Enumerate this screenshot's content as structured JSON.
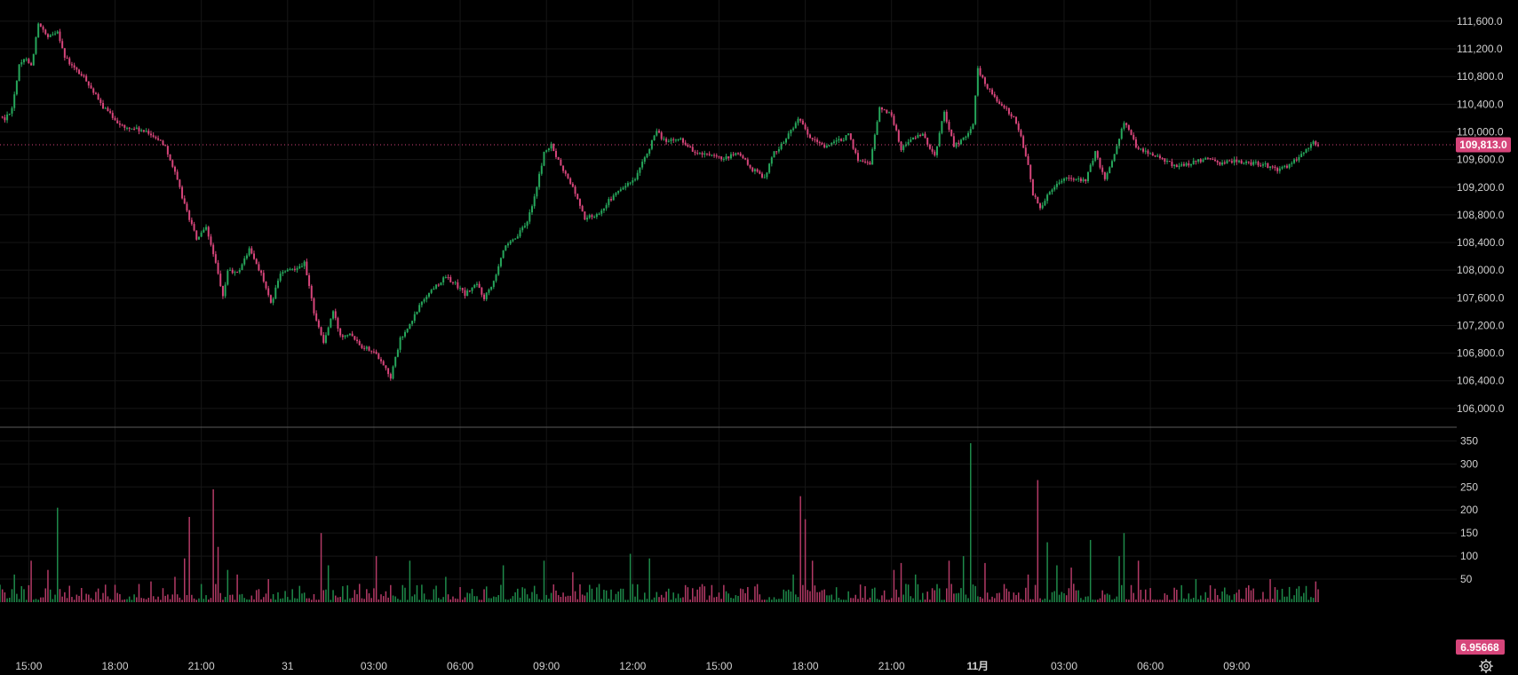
{
  "colors": {
    "background": "#000000",
    "grid": "#161616",
    "up": "#26a65b",
    "down": "#d6457a",
    "up_volume": "#1e8a4a",
    "down_volume": "#b33a66",
    "last_price_line": "#d6457a",
    "last_price_badge": "#d6457a",
    "volume_badge": "#d6457a",
    "pane_separator": "#5a5a5a"
  },
  "icons": {
    "settings": "gear-icon"
  },
  "chart_data": [
    {
      "type": "candlestick",
      "pane": "price",
      "y_ticks": [
        "111,600.0",
        "111,200.0",
        "110,800.0",
        "110,400.0",
        "110,000.0",
        "109,600.0",
        "109,200.0",
        "108,800.0",
        "108,400.0",
        "108,000.0",
        "107,600.0",
        "107,200.0",
        "106,800.0",
        "106,400.0",
        "106,000.0"
      ],
      "ylim": [
        105870,
        111830
      ],
      "last_price": 109813,
      "last_price_label": "109,813.0",
      "grid": true,
      "anchors": [
        [
          "14:00",
          110220
        ],
        [
          "14:10",
          110180
        ],
        [
          "14:25",
          110350
        ],
        [
          "14:40",
          110950
        ],
        [
          "14:55",
          111080
        ],
        [
          "15:05",
          110950
        ],
        [
          "15:20",
          111560
        ],
        [
          "15:40",
          111350
        ],
        [
          "16:00",
          111470
        ],
        [
          "16:15",
          111080
        ],
        [
          "16:30",
          110950
        ],
        [
          "17:00",
          110750
        ],
        [
          "17:30",
          110400
        ],
        [
          "17:50",
          110250
        ],
        [
          "18:05",
          110150
        ],
        [
          "18:20",
          110050
        ],
        [
          "18:40",
          110050
        ],
        [
          "19:00",
          110000
        ],
        [
          "19:20",
          109950
        ],
        [
          "19:45",
          109800
        ],
        [
          "20:05",
          109400
        ],
        [
          "20:25",
          108950
        ],
        [
          "20:50",
          108450
        ],
        [
          "21:10",
          108600
        ],
        [
          "21:25",
          108250
        ],
        [
          "21:45",
          107600
        ],
        [
          "21:55",
          108000
        ],
        [
          "22:15",
          107950
        ],
        [
          "22:40",
          108300
        ],
        [
          "23:05",
          107950
        ],
        [
          "23:25",
          107500
        ],
        [
          "23:45",
          107950
        ],
        [
          "24:05",
          108000
        ],
        [
          "24:35",
          108100
        ],
        [
          "24:55",
          107400
        ],
        [
          "25:15",
          106950
        ],
        [
          "25:35",
          107400
        ],
        [
          "25:50",
          107050
        ],
        [
          "26:10",
          107100
        ],
        [
          "26:35",
          106900
        ],
        [
          "26:55",
          106850
        ],
        [
          "27:15",
          106700
        ],
        [
          "27:35",
          106450
        ],
        [
          "27:55",
          107000
        ],
        [
          "28:15",
          107200
        ],
        [
          "28:40",
          107550
        ],
        [
          "29:05",
          107750
        ],
        [
          "29:30",
          107900
        ],
        [
          "29:50",
          107800
        ],
        [
          "30:10",
          107650
        ],
        [
          "30:35",
          107800
        ],
        [
          "30:50",
          107600
        ],
        [
          "31:10",
          107850
        ],
        [
          "31:30",
          108300
        ],
        [
          "31:55",
          108450
        ],
        [
          "32:20",
          108700
        ],
        [
          "32:40",
          109200
        ],
        [
          "32:55",
          109700
        ],
        [
          "33:10",
          109800
        ],
        [
          "33:30",
          109500
        ],
        [
          "33:55",
          109200
        ],
        [
          "34:20",
          108750
        ],
        [
          "34:45",
          108800
        ],
        [
          "35:10",
          109000
        ],
        [
          "35:40",
          109200
        ],
        [
          "36:05",
          109300
        ],
        [
          "36:30",
          109700
        ],
        [
          "36:50",
          110000
        ],
        [
          "37:10",
          109850
        ],
        [
          "37:40",
          109900
        ],
        [
          "38:10",
          109700
        ],
        [
          "38:40",
          109650
        ],
        [
          "39:10",
          109600
        ],
        [
          "39:40",
          109700
        ],
        [
          "40:10",
          109450
        ],
        [
          "40:35",
          109350
        ],
        [
          "40:55",
          109700
        ],
        [
          "41:20",
          109900
        ],
        [
          "41:45",
          110200
        ],
        [
          "42:10",
          109900
        ],
        [
          "42:40",
          109800
        ],
        [
          "43:05",
          109850
        ],
        [
          "43:30",
          109950
        ],
        [
          "43:50",
          109600
        ],
        [
          "44:15",
          109550
        ],
        [
          "44:35",
          110350
        ],
        [
          "45:00",
          110250
        ],
        [
          "45:20",
          109750
        ],
        [
          "45:40",
          109900
        ],
        [
          "46:05",
          109950
        ],
        [
          "46:30",
          109650
        ],
        [
          "46:50",
          110300
        ],
        [
          "47:10",
          109800
        ],
        [
          "47:30",
          109900
        ],
        [
          "47:50",
          110100
        ],
        [
          "48:00",
          110900
        ],
        [
          "48:15",
          110700
        ],
        [
          "48:35",
          110500
        ],
        [
          "48:55",
          110350
        ],
        [
          "49:15",
          110200
        ],
        [
          "49:30",
          109950
        ],
        [
          "49:45",
          109500
        ],
        [
          "49:55",
          109100
        ],
        [
          "50:10",
          108900
        ],
        [
          "50:30",
          109150
        ],
        [
          "51:00",
          109350
        ],
        [
          "51:25",
          109300
        ],
        [
          "51:45",
          109300
        ],
        [
          "52:05",
          109700
        ],
        [
          "52:25",
          109300
        ],
        [
          "52:45",
          109700
        ],
        [
          "53:05",
          110150
        ],
        [
          "53:30",
          109800
        ],
        [
          "53:55",
          109700
        ],
        [
          "54:25",
          109600
        ],
        [
          "54:55",
          109500
        ],
        [
          "55:25",
          109550
        ],
        [
          "55:55",
          109600
        ],
        [
          "56:25",
          109550
        ],
        [
          "56:55",
          109580
        ],
        [
          "57:25",
          109550
        ],
        [
          "57:55",
          109530
        ],
        [
          "58:20",
          109450
        ],
        [
          "58:45",
          109500
        ],
        [
          "59:05",
          109600
        ],
        [
          "59:25",
          109750
        ],
        [
          "59:40",
          109850
        ],
        [
          "59:50",
          109813
        ]
      ]
    },
    {
      "type": "bar",
      "pane": "volume",
      "y_ticks": [
        "350",
        "300",
        "250",
        "200",
        "150",
        "100",
        "50"
      ],
      "ylim": [
        0,
        372
      ],
      "last_value_label": "6.95668",
      "grid": true,
      "spikes": [
        [
          "14:30",
          60
        ],
        [
          "15:05",
          90
        ],
        [
          "15:40",
          70
        ],
        [
          "16:00",
          205
        ],
        [
          "19:15",
          45
        ],
        [
          "20:05",
          55
        ],
        [
          "20:25",
          95
        ],
        [
          "20:35",
          185
        ],
        [
          "21:25",
          245
        ],
        [
          "21:35",
          120
        ],
        [
          "21:55",
          70
        ],
        [
          "22:15",
          60
        ],
        [
          "23:20",
          50
        ],
        [
          "25:10",
          150
        ],
        [
          "25:25",
          80
        ],
        [
          "27:05",
          100
        ],
        [
          "28:15",
          90
        ],
        [
          "29:30",
          55
        ],
        [
          "31:30",
          80
        ],
        [
          "32:55",
          90
        ],
        [
          "33:55",
          65
        ],
        [
          "35:55",
          105
        ],
        [
          "36:35",
          95
        ],
        [
          "41:35",
          60
        ],
        [
          "41:50",
          230
        ],
        [
          "42:00",
          180
        ],
        [
          "42:15",
          90
        ],
        [
          "45:05",
          70
        ],
        [
          "45:20",
          85
        ],
        [
          "45:50",
          60
        ],
        [
          "47:00",
          90
        ],
        [
          "47:30",
          100
        ],
        [
          "47:45",
          345
        ],
        [
          "48:15",
          85
        ],
        [
          "49:45",
          60
        ],
        [
          "50:05",
          265
        ],
        [
          "50:25",
          130
        ],
        [
          "50:45",
          80
        ],
        [
          "51:15",
          75
        ],
        [
          "51:55",
          135
        ],
        [
          "52:55",
          100
        ],
        [
          "53:05",
          150
        ],
        [
          "53:35",
          90
        ],
        [
          "55:35",
          50
        ],
        [
          "58:10",
          50
        ],
        [
          "59:45",
          45
        ]
      ]
    }
  ],
  "x_axis": {
    "ticks": [
      {
        "label": "15:00",
        "time": "15:00",
        "bold": false
      },
      {
        "label": "18:00",
        "time": "18:00",
        "bold": false
      },
      {
        "label": "21:00",
        "time": "21:00",
        "bold": false
      },
      {
        "label": "31",
        "time": "24:00",
        "bold": false
      },
      {
        "label": "03:00",
        "time": "27:00",
        "bold": false
      },
      {
        "label": "06:00",
        "time": "30:00",
        "bold": false
      },
      {
        "label": "09:00",
        "time": "33:00",
        "bold": false
      },
      {
        "label": "12:00",
        "time": "36:00",
        "bold": false
      },
      {
        "label": "15:00",
        "time": "39:00",
        "bold": false
      },
      {
        "label": "18:00",
        "time": "42:00",
        "bold": false
      },
      {
        "label": "21:00",
        "time": "45:00",
        "bold": false
      },
      {
        "label": "11月",
        "time": "48:00",
        "bold": true
      },
      {
        "label": "03:00",
        "time": "51:00",
        "bold": false
      },
      {
        "label": "06:00",
        "time": "54:00",
        "bold": false
      },
      {
        "label": "09:00",
        "time": "57:00",
        "bold": false
      }
    ]
  }
}
